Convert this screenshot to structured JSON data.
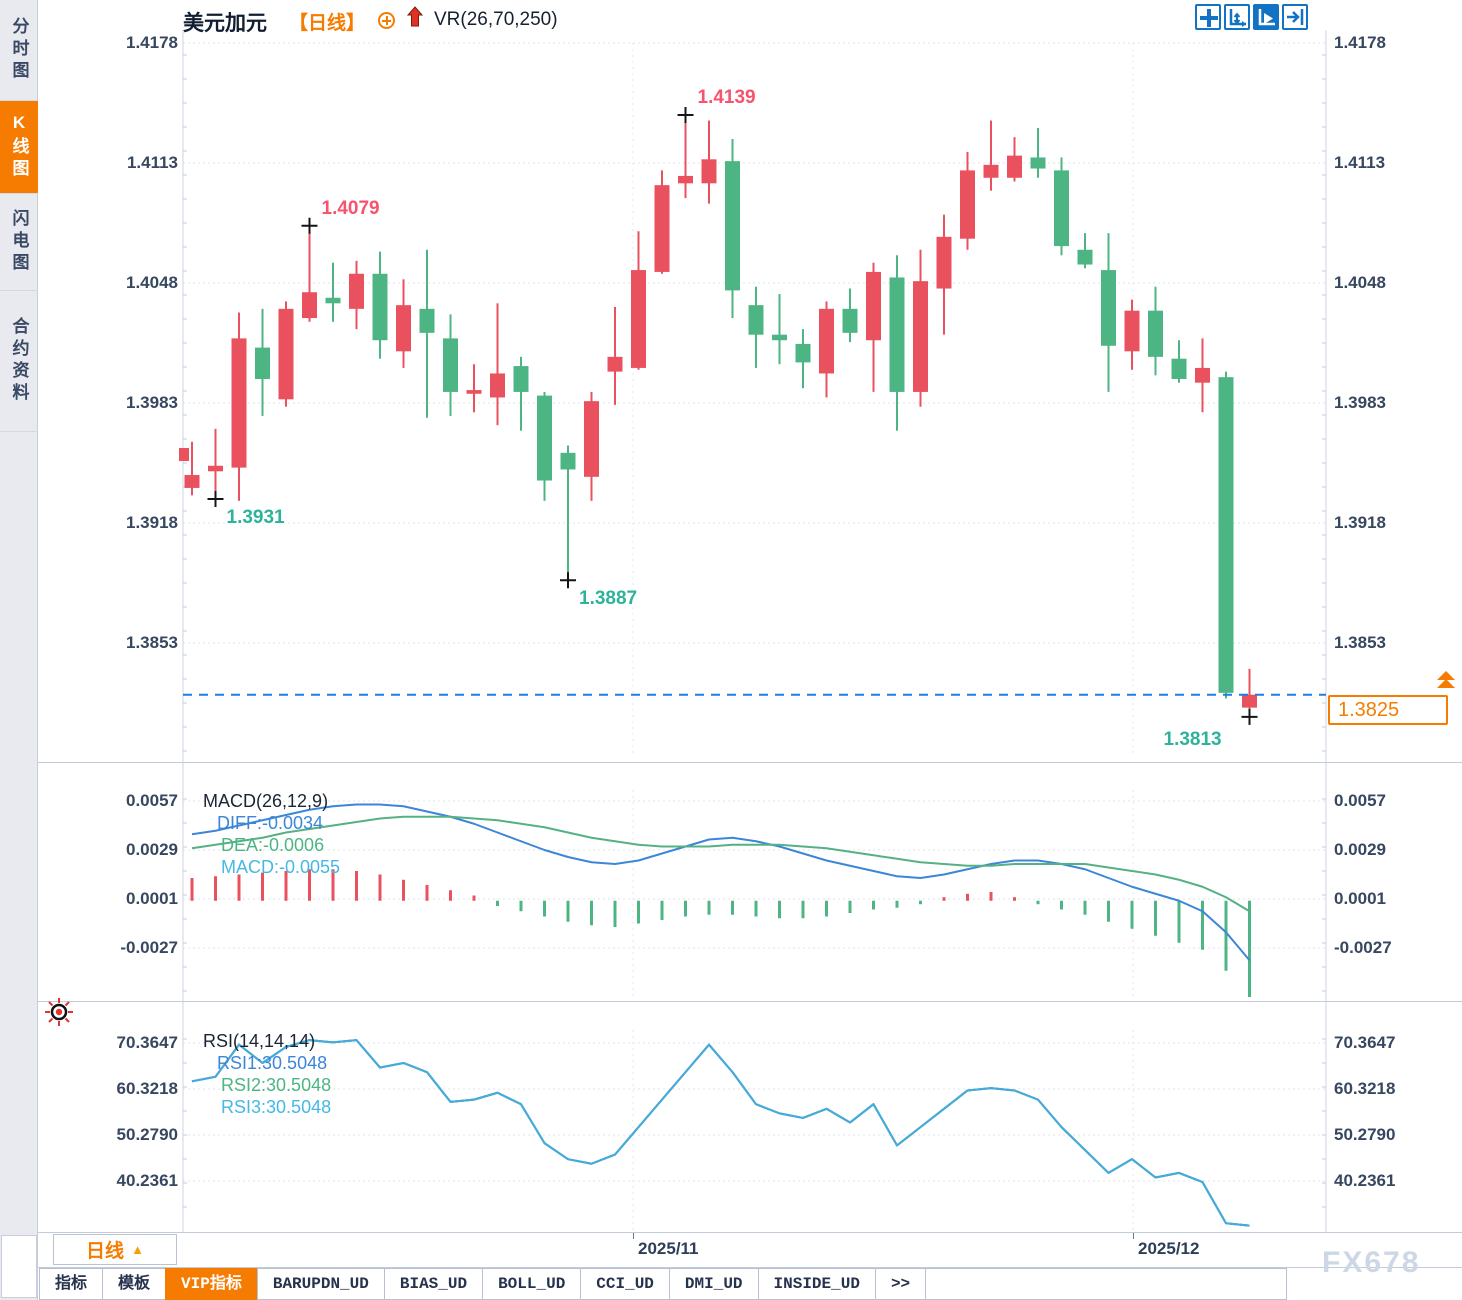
{
  "header": {
    "symbol": "美元加元",
    "period": "【日线】",
    "indicator": "VR(26,70,250)",
    "icons": [
      "add-circle-icon",
      "arrow-up-icon"
    ]
  },
  "toolbar": {
    "buttons": [
      {
        "icon": "crosshair-tool-icon",
        "active": false
      },
      {
        "icon": "fit-axis-icon",
        "active": false
      },
      {
        "icon": "auto-scale-icon",
        "active": true
      },
      {
        "icon": "jump-to-latest-icon",
        "active": false
      }
    ]
  },
  "sidebar": {
    "tabs": [
      {
        "label": "分时图",
        "active": false
      },
      {
        "label": "K线图",
        "active": true
      },
      {
        "label": "闪电图",
        "active": false
      },
      {
        "label": "合约资料",
        "active": false
      }
    ]
  },
  "colors": {
    "up": "#e9515f",
    "down": "#4db583",
    "accent_orange": "#f57c00",
    "diff_line": "#3c86d8",
    "dea_line": "#55b183",
    "rsi_line": "#45aadd",
    "dashed_price_line": "#1f7de0",
    "high_label": "#f9516e",
    "low_label": "#2eb39a",
    "grid": "#dfe3ea",
    "toolbar_blue": "#1273c4",
    "axis_text": "#374760"
  },
  "macd_panel": {
    "title": "MACD(26,12,9)",
    "diff_label": "DIFF:-0.0034",
    "dea_label": "DEA:-0.0006",
    "macd_label": "MACD:-0.0055"
  },
  "rsi_panel": {
    "title": "RSI(14,14,14)",
    "rsi1_label": "RSI1:30.5048",
    "rsi2_label": "RSI2:30.5048",
    "rsi3_label": "RSI3:30.5048"
  },
  "price_tag": {
    "value": "1.3825"
  },
  "period_selector": {
    "label": "日线",
    "arrow": "▲"
  },
  "x_axis": {
    "dates": [
      {
        "label": "2025/11",
        "x": 633
      },
      {
        "label": "2025/12",
        "x": 1133
      }
    ]
  },
  "bottom_tabs": [
    {
      "label": "指标",
      "active": false
    },
    {
      "label": "模板",
      "active": false
    },
    {
      "label": "VIP指标",
      "active": true
    },
    {
      "label": "BARUPDN_UD",
      "active": false
    },
    {
      "label": "BIAS_UD",
      "active": false
    },
    {
      "label": "BOLL_UD",
      "active": false
    },
    {
      "label": "CCI_UD",
      "active": false
    },
    {
      "label": "DMI_UD",
      "active": false
    },
    {
      "label": "INSIDE_UD",
      "active": false
    },
    {
      "label": ">>",
      "active": false
    }
  ],
  "watermark": "FX678",
  "chart_data": [
    {
      "type": "candlestick",
      "title": "美元加元 日线 (USD/CAD daily)",
      "y_ticks": [
        "1.4178",
        "1.4113",
        "1.4048",
        "1.3983",
        "1.3918",
        "1.3853"
      ],
      "ylim": [
        1.379,
        1.4185
      ],
      "x_ticks": [
        "2025/11",
        "2025/12"
      ],
      "last_price": 1.3825,
      "grid": true,
      "candles_ohlc": [
        [
          1.3937,
          1.3962,
          1.3933,
          1.3944
        ],
        [
          1.3946,
          1.3969,
          1.3931,
          1.3949
        ],
        [
          1.3948,
          1.4032,
          1.393,
          1.4018
        ],
        [
          1.4013,
          1.4034,
          1.3976,
          1.3996
        ],
        [
          1.3985,
          1.4038,
          1.3981,
          1.4034
        ],
        [
          1.4029,
          1.4079,
          1.4027,
          1.4043
        ],
        [
          1.404,
          1.4059,
          1.4027,
          1.4037
        ],
        [
          1.4034,
          1.406,
          1.4023,
          1.4053
        ],
        [
          1.4053,
          1.4065,
          1.4007,
          1.4017
        ],
        [
          1.4011,
          1.405,
          1.4002,
          1.4036
        ],
        [
          1.4034,
          1.4066,
          1.3975,
          1.4021
        ],
        [
          1.4018,
          1.4031,
          1.3976,
          1.3989
        ],
        [
          1.3988,
          1.4004,
          1.3978,
          1.399
        ],
        [
          1.3986,
          1.4037,
          1.3971,
          1.3999
        ],
        [
          1.4003,
          1.4008,
          1.3968,
          1.3989
        ],
        [
          1.3987,
          1.3989,
          1.393,
          1.3941
        ],
        [
          1.3956,
          1.396,
          1.3887,
          1.3947
        ],
        [
          1.3943,
          1.3989,
          1.393,
          1.3984
        ],
        [
          1.4,
          1.4035,
          1.3982,
          1.4008
        ],
        [
          1.4002,
          1.4076,
          1.4001,
          1.4055
        ],
        [
          1.4054,
          1.4109,
          1.4053,
          1.4101
        ],
        [
          1.4102,
          1.4139,
          1.4094,
          1.4106
        ],
        [
          1.4102,
          1.4136,
          1.4091,
          1.4115
        ],
        [
          1.4114,
          1.4126,
          1.4029,
          1.4044
        ],
        [
          1.4036,
          1.4046,
          1.4002,
          1.402
        ],
        [
          1.402,
          1.4042,
          1.4004,
          1.4017
        ],
        [
          1.4015,
          1.4023,
          1.3991,
          1.4005
        ],
        [
          1.3999,
          1.4038,
          1.3986,
          1.4034
        ],
        [
          1.4034,
          1.4045,
          1.4016,
          1.4021
        ],
        [
          1.4017,
          1.4059,
          1.3989,
          1.4054
        ],
        [
          1.4051,
          1.4063,
          1.3968,
          1.3989
        ],
        [
          1.3989,
          1.4066,
          1.3981,
          1.4049
        ],
        [
          1.4045,
          1.4085,
          1.402,
          1.4073
        ],
        [
          1.4072,
          1.4119,
          1.4066,
          1.4109
        ],
        [
          1.4105,
          1.4136,
          1.4098,
          1.4112
        ],
        [
          1.4105,
          1.4127,
          1.4103,
          1.4117
        ],
        [
          1.4116,
          1.4132,
          1.4105,
          1.411
        ],
        [
          1.4109,
          1.4116,
          1.4063,
          1.4068
        ],
        [
          1.4066,
          1.4075,
          1.4056,
          1.4058
        ],
        [
          1.4055,
          1.4075,
          1.3989,
          1.4014
        ],
        [
          1.4011,
          1.4039,
          1.4001,
          1.4033
        ],
        [
          1.4033,
          1.4046,
          1.3998,
          1.4008
        ],
        [
          1.4007,
          1.4017,
          1.3994,
          1.3996
        ],
        [
          1.3994,
          1.4018,
          1.3978,
          1.4002
        ],
        [
          1.3997,
          1.4,
          1.3823,
          1.3826
        ],
        [
          1.3818,
          1.3839,
          1.3813,
          1.3825
        ]
      ],
      "annotations": [
        {
          "type": "high",
          "text": "1.4079",
          "index": 5,
          "price": 1.4079,
          "side": "above-right"
        },
        {
          "type": "high",
          "text": "1.4139",
          "index": 21,
          "price": 1.4139,
          "side": "above-right"
        },
        {
          "type": "low",
          "text": "1.3931",
          "index": 1,
          "price": 1.3931,
          "side": "below-right"
        },
        {
          "type": "low",
          "text": "1.3887",
          "index": 16,
          "price": 1.3887,
          "side": "below-right"
        },
        {
          "type": "low",
          "text": "1.3813",
          "index": 45,
          "price": 1.3813,
          "side": "below-left"
        }
      ]
    },
    {
      "type": "bar+line",
      "name": "MACD(26,12,9)",
      "y_ticks": [
        "0.0057",
        "0.0029",
        "0.0001",
        "-0.0027"
      ],
      "series": [
        {
          "name": "DIFF",
          "type": "line",
          "last": -0.0034,
          "values": [
            0.0038,
            0.004,
            0.0043,
            0.0046,
            0.0049,
            0.0052,
            0.0054,
            0.0055,
            0.0055,
            0.0054,
            0.0051,
            0.0048,
            0.0044,
            0.0039,
            0.0034,
            0.0029,
            0.0025,
            0.0022,
            0.0021,
            0.0023,
            0.0027,
            0.0031,
            0.0035,
            0.0036,
            0.0034,
            0.0031,
            0.0027,
            0.0023,
            0.002,
            0.0017,
            0.0014,
            0.0013,
            0.0015,
            0.0018,
            0.0021,
            0.0023,
            0.0023,
            0.0021,
            0.0018,
            0.0013,
            0.0008,
            0.0004,
            0.0,
            -0.0006,
            -0.0018,
            -0.0034
          ]
        },
        {
          "name": "DEA",
          "type": "line",
          "last": -0.0006,
          "values": [
            0.003,
            0.0032,
            0.0034,
            0.0036,
            0.0039,
            0.0041,
            0.0043,
            0.0045,
            0.0047,
            0.0048,
            0.0048,
            0.0048,
            0.0047,
            0.0046,
            0.0044,
            0.0042,
            0.0039,
            0.0036,
            0.0034,
            0.0032,
            0.0031,
            0.0031,
            0.0031,
            0.0032,
            0.0032,
            0.0032,
            0.0031,
            0.003,
            0.0028,
            0.0026,
            0.0024,
            0.0022,
            0.0021,
            0.002,
            0.002,
            0.0021,
            0.0021,
            0.0021,
            0.0021,
            0.0019,
            0.0017,
            0.0015,
            0.0012,
            0.0008,
            0.0002,
            -0.0006
          ]
        },
        {
          "name": "MACD",
          "type": "bar",
          "last": -0.0055,
          "values": [
            0.0013,
            0.0014,
            0.0015,
            0.0016,
            0.0017,
            0.0018,
            0.0018,
            0.0017,
            0.0015,
            0.0012,
            0.0009,
            0.0006,
            0.0003,
            -0.0003,
            -0.0006,
            -0.0009,
            -0.0012,
            -0.0014,
            -0.0015,
            -0.0013,
            -0.0011,
            -0.0009,
            -0.0008,
            -0.0008,
            -0.0009,
            -0.001,
            -0.001,
            -0.0009,
            -0.0007,
            -0.0005,
            -0.0004,
            -0.0002,
            0.0002,
            0.0004,
            0.0005,
            0.0002,
            -0.0002,
            -0.0005,
            -0.0008,
            -0.0012,
            -0.0016,
            -0.002,
            -0.0024,
            -0.0028,
            -0.004,
            -0.0055
          ]
        }
      ]
    },
    {
      "type": "line",
      "name": "RSI(14,14,14)",
      "y_ticks": [
        "70.3647",
        "60.3218",
        "50.2790",
        "40.2361"
      ],
      "note": "RSI1, RSI2 and RSI3 overlap exactly; final value 30.5048",
      "series_names": [
        "RSI1",
        "RSI2",
        "RSI3"
      ],
      "values": [
        62,
        63,
        70,
        66,
        69.5,
        71,
        70.5,
        71,
        65,
        66,
        64,
        57.5,
        58,
        59.5,
        57,
        48.5,
        45,
        44,
        46,
        52,
        58,
        64,
        70,
        64,
        57,
        55,
        54,
        56,
        53,
        57,
        48,
        52,
        56,
        60,
        60.5,
        60,
        58,
        52,
        47,
        42,
        45,
        41,
        42,
        40,
        31,
        30.5
      ]
    }
  ]
}
